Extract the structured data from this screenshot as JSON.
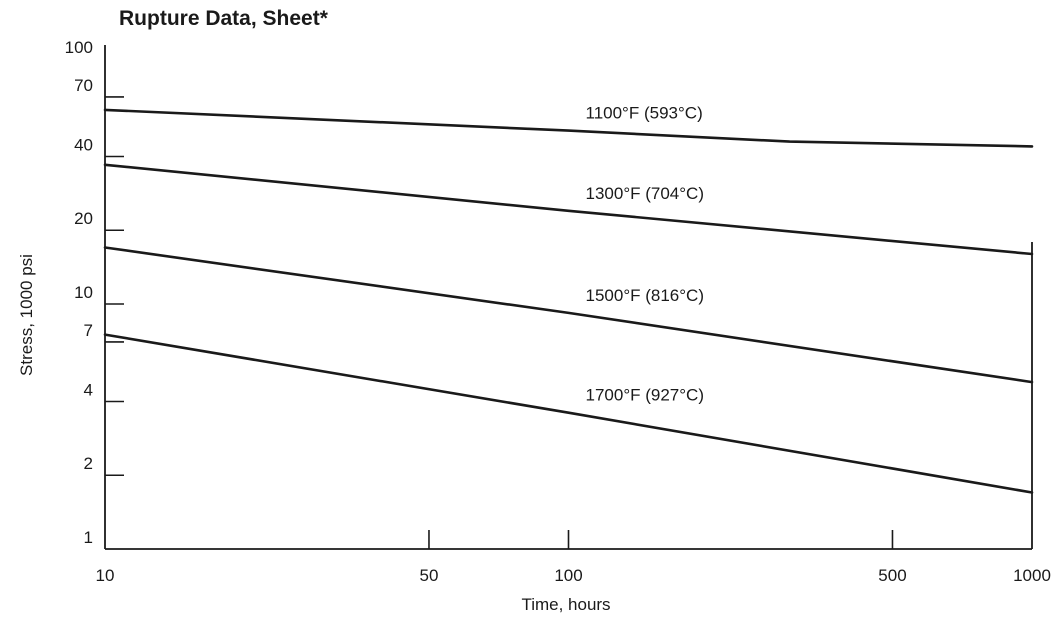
{
  "chart_data": {
    "type": "line",
    "title": "Rupture Data, Sheet*",
    "xlabel": "Time, hours",
    "ylabel": "Stress, 1000 psi",
    "xscale": "log",
    "yscale": "log",
    "xlim": [
      10,
      1000
    ],
    "ylim": [
      1,
      100
    ],
    "xticks": [
      10,
      50,
      100,
      500,
      1000
    ],
    "xtick_labels": [
      "10",
      "50",
      "100",
      "500",
      "1000"
    ],
    "yticks": [
      1,
      2,
      4,
      7,
      10,
      20,
      40,
      70,
      100
    ],
    "ytick_labels": [
      "1",
      "2",
      "4",
      "7",
      "10",
      "20",
      "40",
      "70",
      "100"
    ],
    "grid": false,
    "legend": "none",
    "series": [
      {
        "name": "1100°F (593°C)",
        "x": [
          10,
          100,
          300,
          1000
        ],
        "y": [
          62,
          51,
          46,
          44
        ]
      },
      {
        "name": "1300°F (704°C)",
        "x": [
          10,
          100,
          1000
        ],
        "y": [
          37,
          24,
          16
        ]
      },
      {
        "name": "1500°F (816°C)",
        "x": [
          10,
          100,
          1000
        ],
        "y": [
          17,
          9.2,
          4.8
        ]
      },
      {
        "name": "1700°F (927°C)",
        "x": [
          10,
          100,
          1000
        ],
        "y": [
          7.5,
          3.6,
          1.7
        ]
      }
    ]
  }
}
